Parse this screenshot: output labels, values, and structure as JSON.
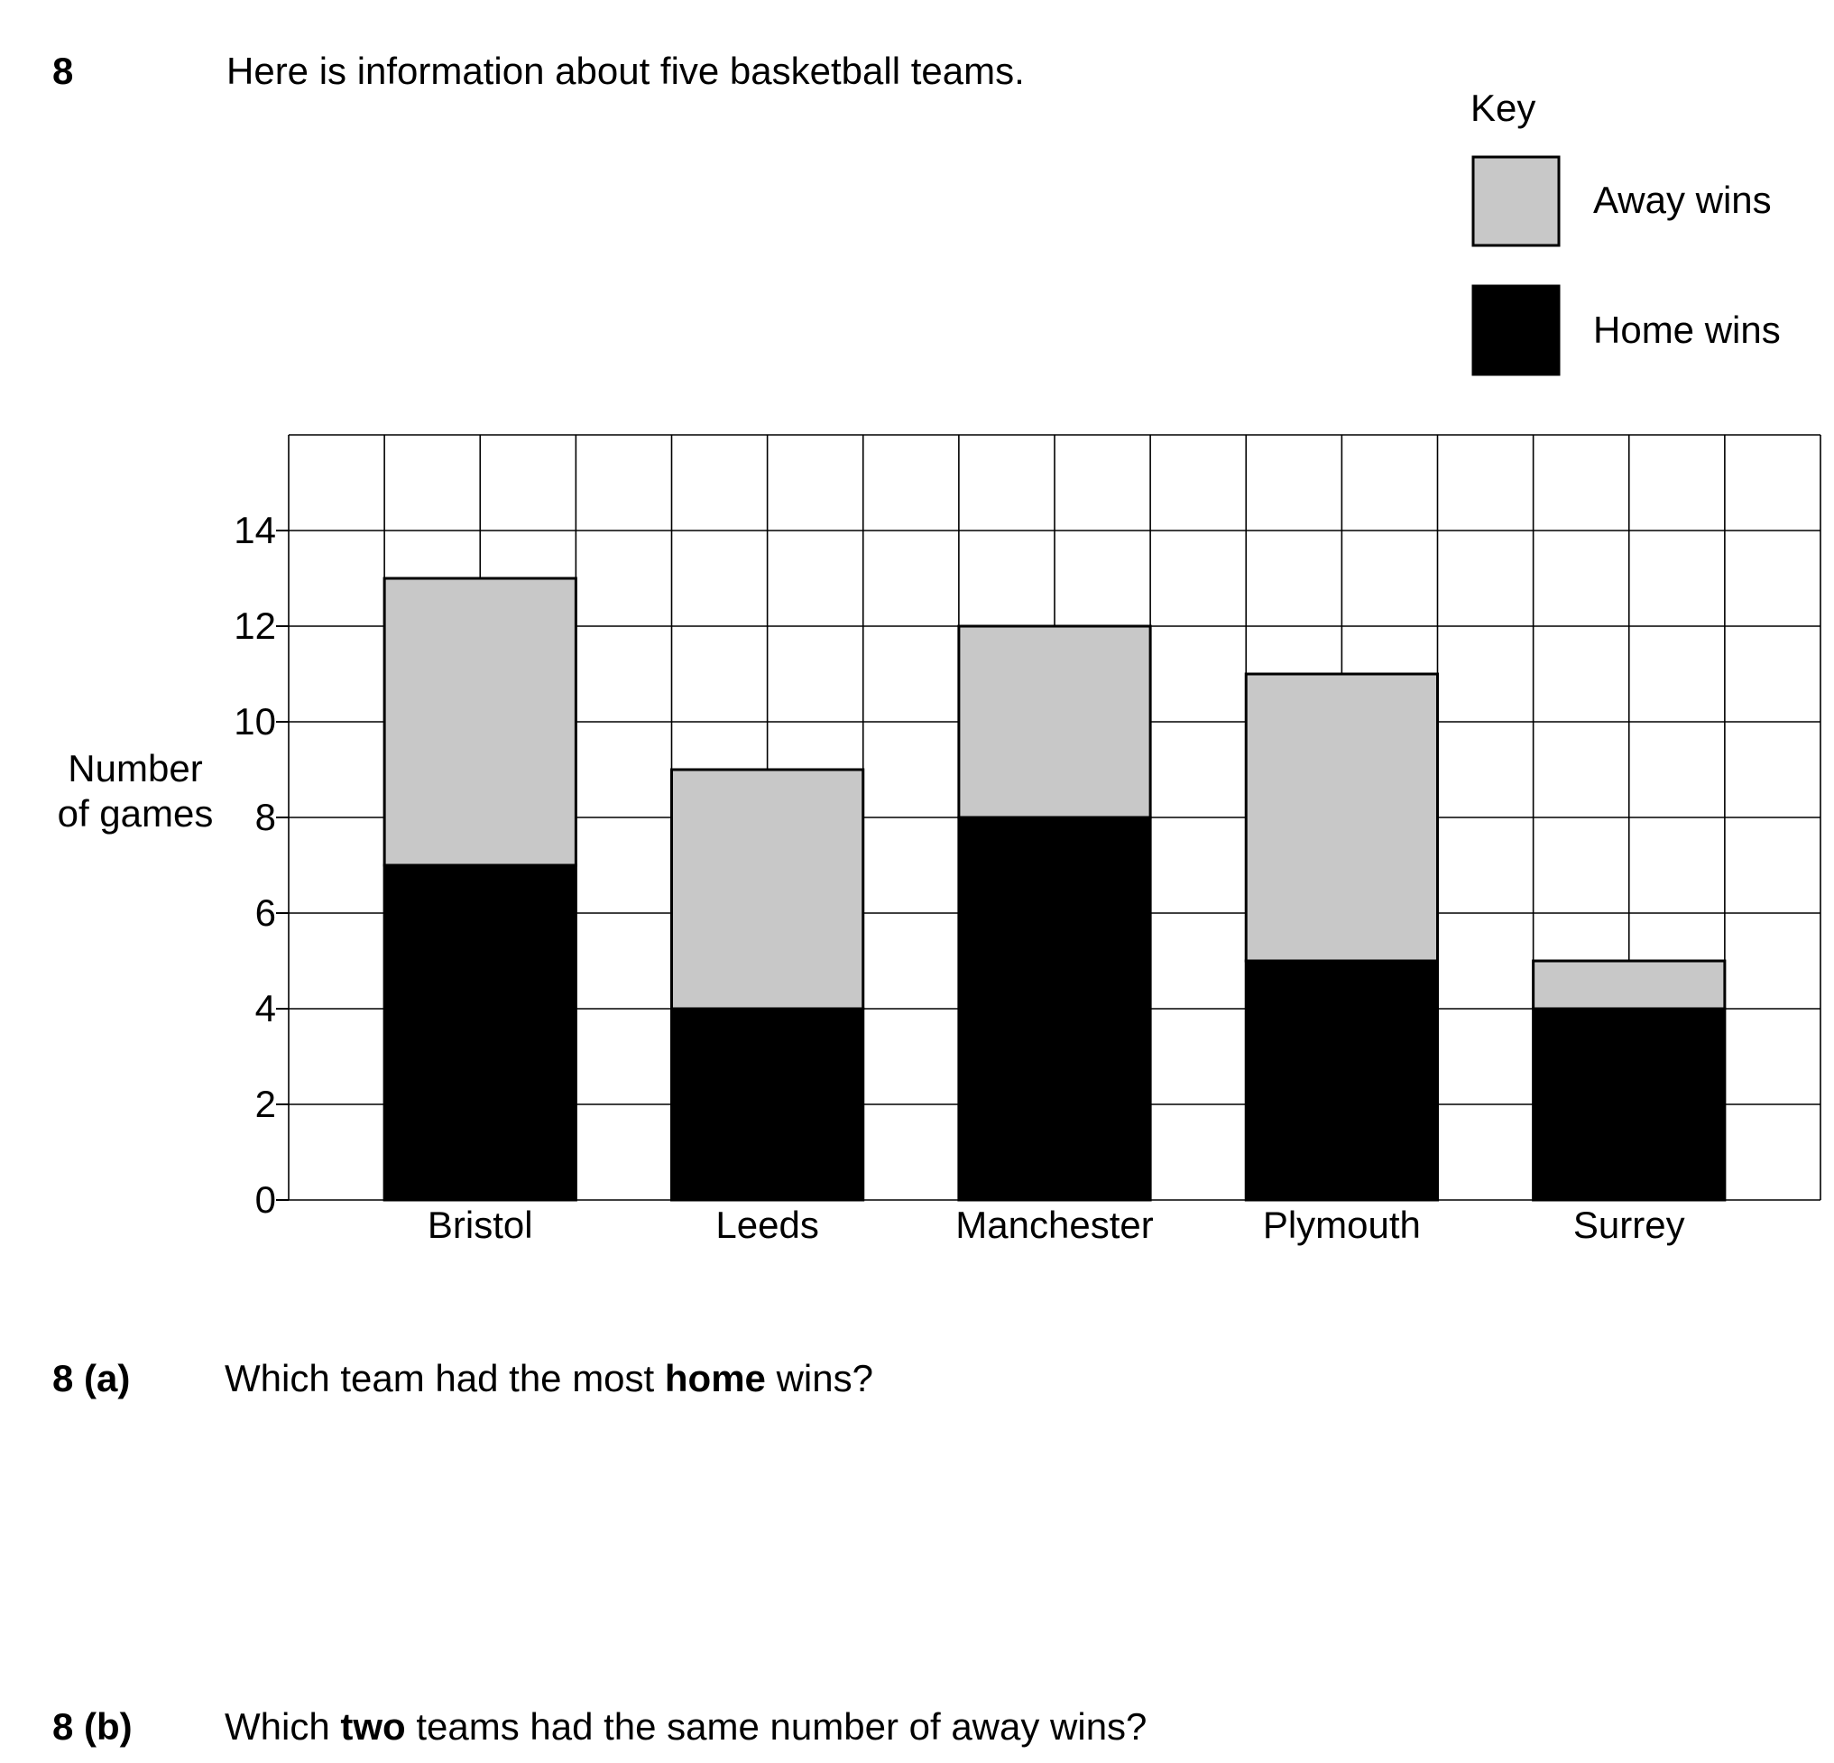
{
  "question": {
    "number": "8",
    "text": "Here is information about five basketball teams."
  },
  "key": {
    "title": "Key",
    "items": [
      {
        "label": "Away wins",
        "color": "#c8c8c8"
      },
      {
        "label": "Home wins",
        "color": "#000000"
      }
    ]
  },
  "parts": [
    {
      "label": "8 (a)",
      "text_before": "Which team had the most ",
      "text_bold": "home",
      "text_after": " wins?"
    },
    {
      "label": "8 (b)",
      "text_before": "Which ",
      "text_bold": "two",
      "text_after": " teams had the same number of away wins?"
    }
  ],
  "chart_data": {
    "type": "bar",
    "stacked": true,
    "categories": [
      "Bristol",
      "Leeds",
      "Manchester",
      "Plymouth",
      "Surrey"
    ],
    "series": [
      {
        "name": "Home wins",
        "values": [
          7,
          4,
          8,
          5,
          4
        ],
        "color": "#000000"
      },
      {
        "name": "Away wins",
        "values": [
          6,
          5,
          4,
          6,
          1
        ],
        "color": "#c8c8c8"
      }
    ],
    "ylabel_lines": [
      "Number",
      "of games"
    ],
    "xlabel": "",
    "ylim": [
      0,
      16
    ],
    "yticks": [
      0,
      2,
      4,
      6,
      8,
      10,
      12,
      14
    ],
    "grid": true,
    "legend": "top-right"
  }
}
